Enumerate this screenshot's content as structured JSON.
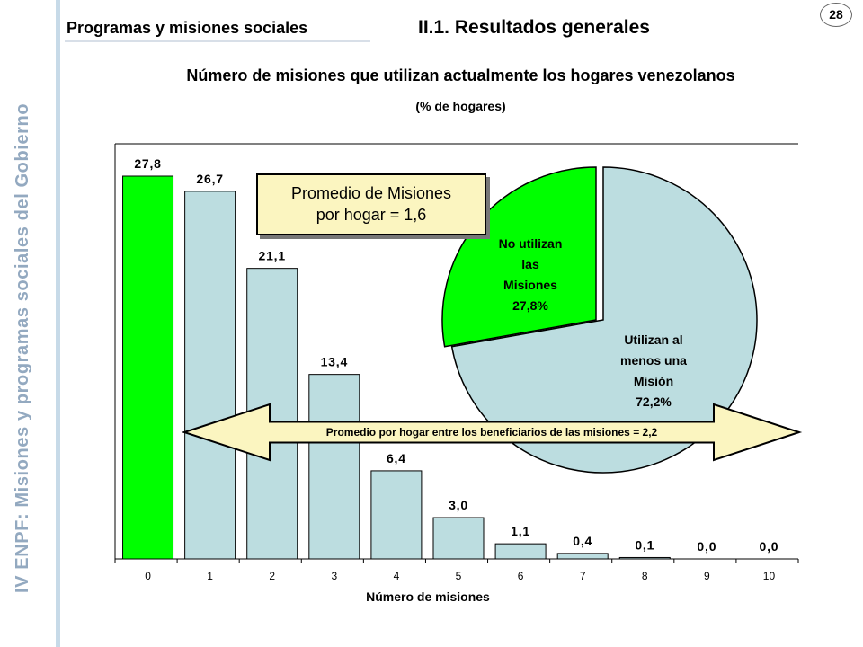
{
  "page": {
    "side_title": "IV ENPF:  Misiones y programas sociales del Gobierno",
    "section": "Programas y misiones sociales",
    "subsection": "II.1. Resultados generales",
    "page_number": "28",
    "title": "Número de misiones que utilizan actualmente los hogares venezolanos",
    "subtitle": "(% de hogares)"
  },
  "callouts": {
    "promedio_line1": "Promedio de Misiones",
    "promedio_line2": "por hogar = 1,6",
    "arrow_text": "Promedio por hogar entre los beneficiarios de las misiones = 2,2"
  },
  "colors": {
    "green": "#00ff00",
    "lightblue": "#bcdde0",
    "callout_fill": "#fbf5c0",
    "side_text": "#93a9c0"
  },
  "chart_data": [
    {
      "type": "bar",
      "xlabel": "Número de misiones",
      "categories": [
        "0",
        "1",
        "2",
        "3",
        "4",
        "5",
        "6",
        "7",
        "8",
        "9",
        "10"
      ],
      "values": [
        27.8,
        26.7,
        21.1,
        13.4,
        6.4,
        3.0,
        1.1,
        0.4,
        0.1,
        0.0,
        0.0
      ],
      "value_labels": [
        "27,8",
        "26,7",
        "21,1",
        "13,4",
        "6,4",
        "3,0",
        "1,1",
        "0,4",
        "0,1",
        "0,0",
        "0,0"
      ],
      "bar_colors": [
        "#00ff00",
        "#bcdde0",
        "#bcdde0",
        "#bcdde0",
        "#bcdde0",
        "#bcdde0",
        "#bcdde0",
        "#bcdde0",
        "#bcdde0",
        "#bcdde0",
        "#bcdde0"
      ],
      "ylim": [
        0,
        30
      ],
      "grid": false
    },
    {
      "type": "pie",
      "slices": [
        {
          "label_lines": [
            "No utilizan",
            "las",
            "Misiones",
            "27,8%"
          ],
          "value": 27.8,
          "color": "#00ff00"
        },
        {
          "label_lines": [
            "Utilizan al",
            "menos una",
            "Misión",
            "72,2%"
          ],
          "value": 72.2,
          "color": "#bcdde0"
        }
      ]
    }
  ]
}
